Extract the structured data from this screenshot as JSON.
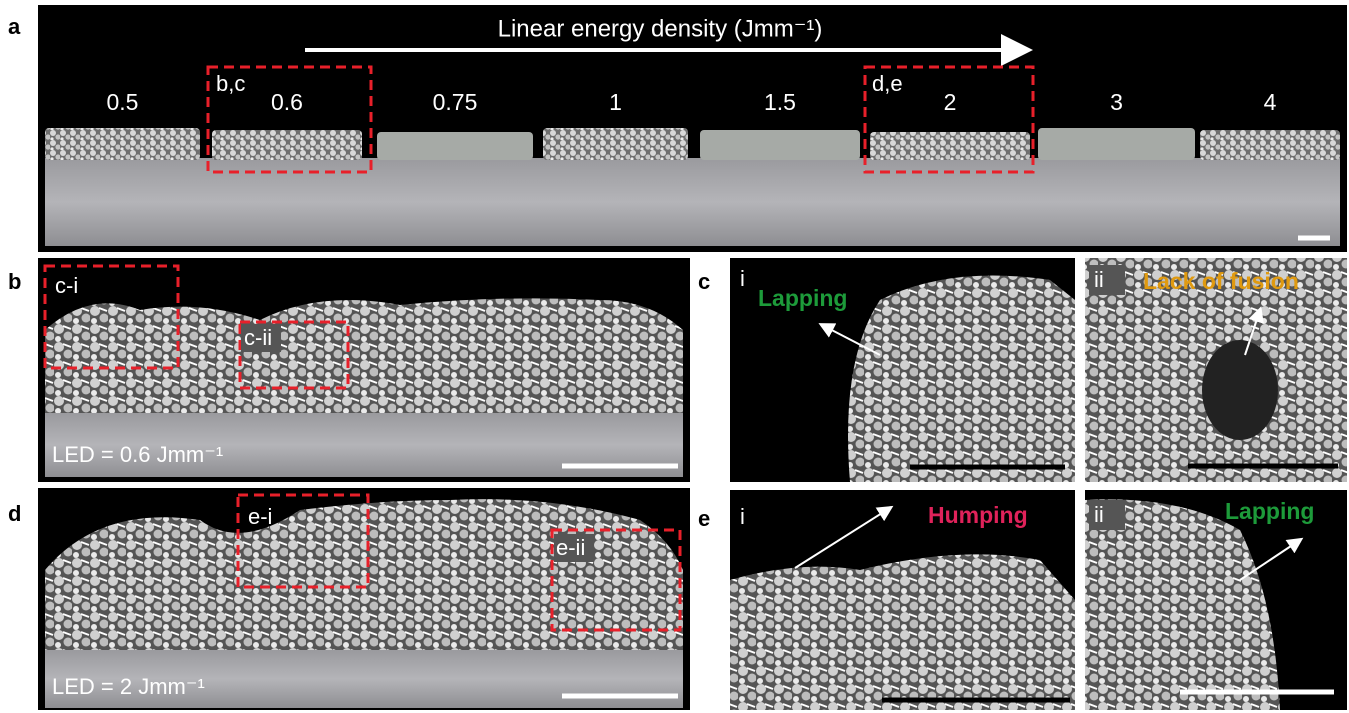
{
  "panels": {
    "a": {
      "label": "a",
      "axis_title": "Linear energy density (Jmm⁻¹)",
      "energy_labels": [
        "0.5",
        "0.6",
        "0.75",
        "1",
        "1.5",
        "2",
        "3",
        "4"
      ],
      "box_labels": [
        "b,c",
        "d,e"
      ]
    },
    "b": {
      "label": "b",
      "box_labels": [
        "c-i",
        "c-ii"
      ],
      "led": "LED = 0.6 Jmm⁻¹"
    },
    "c": {
      "label": "c",
      "sub_labels": [
        "i",
        "ii"
      ],
      "annotations": [
        "Lapping",
        "Lack of fusion"
      ]
    },
    "d": {
      "label": "d",
      "box_labels": [
        "e-i",
        "e-ii"
      ],
      "led": "LED = 2 Jmm⁻¹"
    },
    "e": {
      "label": "e",
      "sub_labels": [
        "i",
        "ii"
      ],
      "annotations": [
        "Humping",
        "Lapping"
      ]
    }
  }
}
